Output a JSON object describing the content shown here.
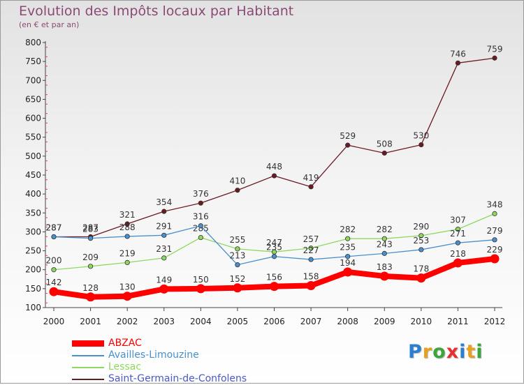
{
  "title": "Evolution des Impôts locaux par Habitant",
  "subtitle": "(en € et par an)",
  "logo_text": "Proxiti",
  "chart_data": {
    "type": "line",
    "title": "Evolution des Impôts locaux par Habitant",
    "subtitle": "(en € et par an)",
    "xlabel": "",
    "ylabel": "",
    "ylim": [
      100,
      800
    ],
    "yticks": [
      "100",
      "150",
      "200",
      "250",
      "300",
      "350",
      "400",
      "450",
      "500",
      "550",
      "600",
      "650",
      "700",
      "750",
      "800"
    ],
    "categories": [
      "2000",
      "2001",
      "2002",
      "2003",
      "2004",
      "2005",
      "2006",
      "2007",
      "2008",
      "2009",
      "2010",
      "2011",
      "2012"
    ],
    "grid": false,
    "legend_position": "bottom-left",
    "series": [
      {
        "name": "ABZAC",
        "color": "#ff0000",
        "values": [
          142,
          128,
          130,
          149,
          150,
          152,
          156,
          158,
          194,
          183,
          178,
          218,
          229
        ]
      },
      {
        "name": "Availles-Limouzine",
        "color": "#4a90cc",
        "values": [
          287,
          283,
          288,
          291,
          316,
          213,
          235,
          227,
          235,
          243,
          253,
          271,
          279
        ]
      },
      {
        "name": "Lessac",
        "color": "#8fd860",
        "values": [
          200,
          209,
          219,
          231,
          285,
          255,
          247,
          257,
          282,
          282,
          290,
          307,
          348
        ]
      },
      {
        "name": "Saint-Germain-de-Confolens",
        "color": "#6b1a22",
        "values": [
          287,
          287,
          321,
          354,
          376,
          410,
          448,
          419,
          529,
          508,
          530,
          746,
          759
        ]
      }
    ]
  }
}
